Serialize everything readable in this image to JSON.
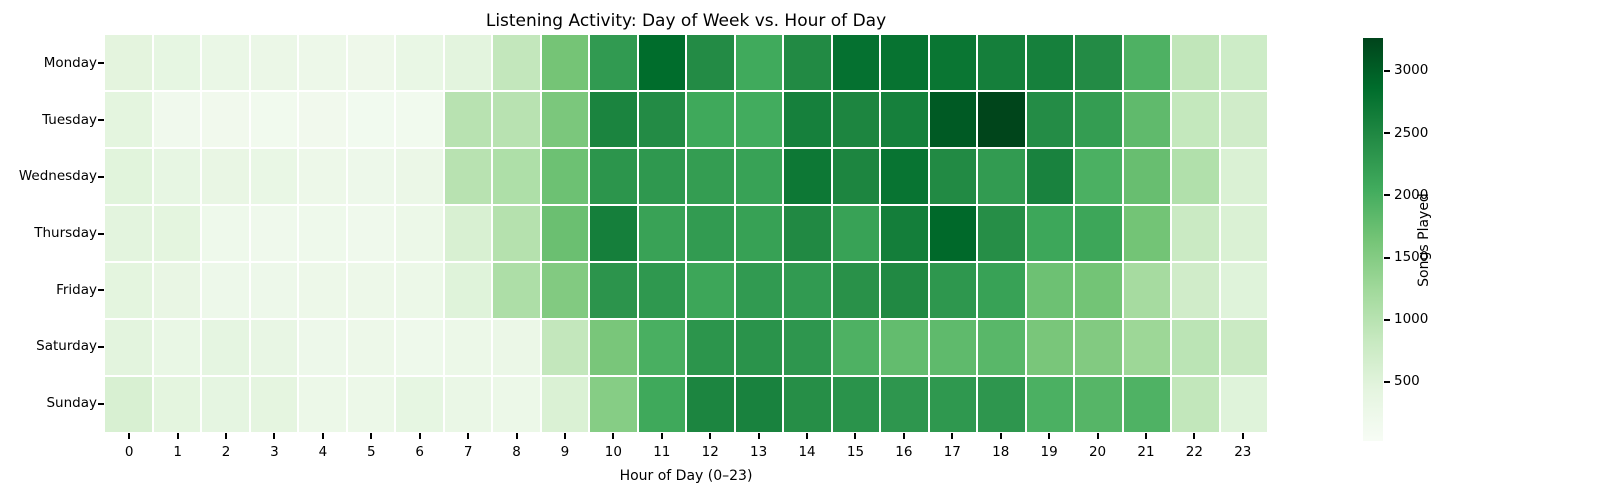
{
  "chart_data": {
    "type": "heatmap",
    "title": "Listening Activity: Day of Week vs. Hour of Day",
    "xlabel": "Hour of Day (0–23)",
    "ylabel": "",
    "colorbar_label": "Songs Played",
    "legend_position": "right-colorbar",
    "grid": "white-2px-cell-borders",
    "rows": [
      "Monday",
      "Tuesday",
      "Wednesday",
      "Thursday",
      "Friday",
      "Saturday",
      "Sunday"
    ],
    "columns": [
      "0",
      "1",
      "2",
      "3",
      "4",
      "5",
      "6",
      "7",
      "8",
      "9",
      "10",
      "11",
      "12",
      "13",
      "14",
      "15",
      "16",
      "17",
      "18",
      "19",
      "20",
      "21",
      "22",
      "23"
    ],
    "values": [
      [
        450,
        400,
        320,
        290,
        250,
        230,
        340,
        460,
        880,
        1640,
        2260,
        2860,
        2450,
        2060,
        2470,
        2800,
        2780,
        2740,
        2620,
        2600,
        2450,
        1950,
        900,
        750
      ],
      [
        440,
        180,
        170,
        160,
        170,
        150,
        160,
        1000,
        1000,
        1580,
        2550,
        2450,
        2080,
        2040,
        2600,
        2530,
        2600,
        3050,
        3260,
        2440,
        2230,
        1800,
        870,
        720
      ],
      [
        480,
        380,
        350,
        330,
        260,
        240,
        290,
        1000,
        1100,
        1700,
        2330,
        2290,
        2230,
        2170,
        2710,
        2530,
        2770,
        2470,
        2250,
        2570,
        1970,
        1740,
        1070,
        580
      ],
      [
        460,
        440,
        220,
        200,
        220,
        200,
        280,
        610,
        1030,
        1720,
        2620,
        2160,
        2250,
        2180,
        2480,
        2170,
        2630,
        2900,
        2420,
        2100,
        2110,
        1650,
        800,
        580
      ],
      [
        440,
        350,
        240,
        240,
        260,
        250,
        280,
        510,
        1110,
        1520,
        2340,
        2290,
        2110,
        2260,
        2260,
        2380,
        2480,
        2300,
        2170,
        1700,
        1650,
        1190,
        720,
        510
      ],
      [
        460,
        330,
        420,
        360,
        240,
        250,
        220,
        280,
        300,
        880,
        1600,
        1990,
        2330,
        2360,
        2310,
        1950,
        1780,
        1810,
        1860,
        1600,
        1520,
        1280,
        960,
        800
      ],
      [
        610,
        440,
        420,
        430,
        280,
        270,
        400,
        320,
        280,
        580,
        1480,
        2080,
        2540,
        2570,
        2420,
        2360,
        2310,
        2290,
        2310,
        1970,
        1880,
        1940,
        890,
        510
      ]
    ],
    "color_scale": {
      "name": "Greens",
      "domain": [
        25,
        3265
      ],
      "anchors": [
        "#f7fcf5",
        "#e5f5e0",
        "#c7e9c0",
        "#a1d99b",
        "#74c476",
        "#41ab5d",
        "#238b45",
        "#006d2c",
        "#00441b"
      ]
    },
    "colorbar_ticks": [
      500,
      1000,
      1500,
      2000,
      2500,
      3000
    ]
  }
}
